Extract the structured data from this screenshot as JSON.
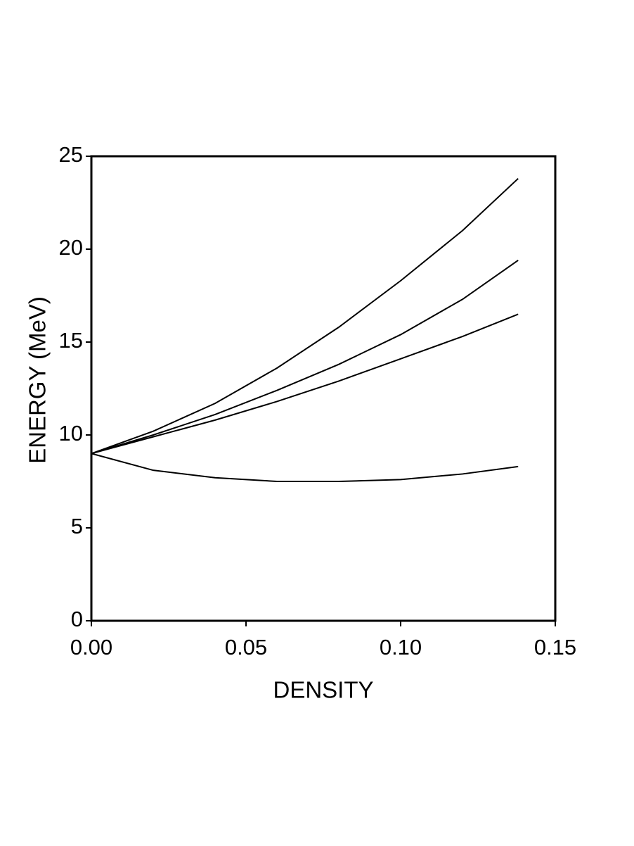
{
  "chart_data": {
    "type": "line",
    "x_label": "DENSITY",
    "y_label": "ENERGY  (MeV)",
    "x": [
      0,
      0.02,
      0.04,
      0.06,
      0.08,
      0.1,
      0.12,
      0.138
    ],
    "series": [
      {
        "color": "#000000",
        "values": [
          9,
          10.2,
          11.7,
          13.6,
          15.8,
          18.3,
          21.0,
          23.8
        ]
      },
      {
        "color": "#000000",
        "values": [
          9,
          10.0,
          11.1,
          12.4,
          13.8,
          15.4,
          17.3,
          19.4
        ]
      },
      {
        "color": "#000000",
        "values": [
          9,
          9.9,
          10.8,
          11.8,
          12.9,
          14.1,
          15.3,
          16.5
        ]
      },
      {
        "color": "#000000",
        "values": [
          9,
          8.1,
          7.7,
          7.5,
          7.5,
          7.6,
          7.9,
          8.3
        ]
      }
    ],
    "xlim": [
      0,
      0.15
    ],
    "ylim": [
      0,
      25
    ],
    "xticks": [
      {
        "value": 0,
        "label": "0.00"
      },
      {
        "value": 0.05,
        "label": "0.05"
      },
      {
        "value": 0.1,
        "label": "0.10"
      },
      {
        "value": 0.15,
        "label": "0.15"
      }
    ],
    "yticks": [
      0,
      5,
      10,
      15,
      20,
      25
    ],
    "grid": false
  }
}
